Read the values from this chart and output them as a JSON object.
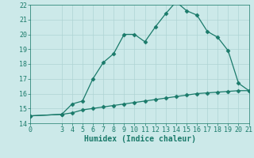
{
  "xlabel": "Humidex (Indice chaleur)",
  "background_color": "#cce9e9",
  "line_color": "#1a7a6a",
  "grid_color": "#aed4d4",
  "x_upper": [
    0,
    3,
    4,
    5,
    6,
    7,
    8,
    9,
    10,
    11,
    12,
    13,
    14,
    15,
    16,
    17,
    18,
    19,
    20,
    21
  ],
  "y_upper": [
    14.5,
    14.6,
    15.3,
    15.5,
    17.0,
    18.1,
    18.7,
    20.0,
    20.0,
    19.5,
    20.5,
    21.4,
    22.2,
    21.6,
    21.3,
    20.2,
    19.8,
    18.9,
    16.7,
    16.2
  ],
  "x_lower": [
    0,
    3,
    4,
    5,
    6,
    7,
    8,
    9,
    10,
    11,
    12,
    13,
    14,
    15,
    16,
    17,
    18,
    19,
    20,
    21
  ],
  "y_lower": [
    14.5,
    14.6,
    14.7,
    14.9,
    15.0,
    15.1,
    15.2,
    15.3,
    15.4,
    15.5,
    15.6,
    15.7,
    15.8,
    15.9,
    16.0,
    16.05,
    16.1,
    16.15,
    16.2,
    16.2
  ],
  "xlim": [
    0,
    21
  ],
  "ylim": [
    14,
    22
  ],
  "yticks": [
    14,
    15,
    16,
    17,
    18,
    19,
    20,
    21,
    22
  ],
  "xticks": [
    0,
    3,
    4,
    5,
    6,
    7,
    8,
    9,
    10,
    11,
    12,
    13,
    14,
    15,
    16,
    17,
    18,
    19,
    20,
    21
  ],
  "tick_fontsize": 6,
  "xlabel_fontsize": 7,
  "marker_size": 2.5,
  "linewidth": 0.9
}
